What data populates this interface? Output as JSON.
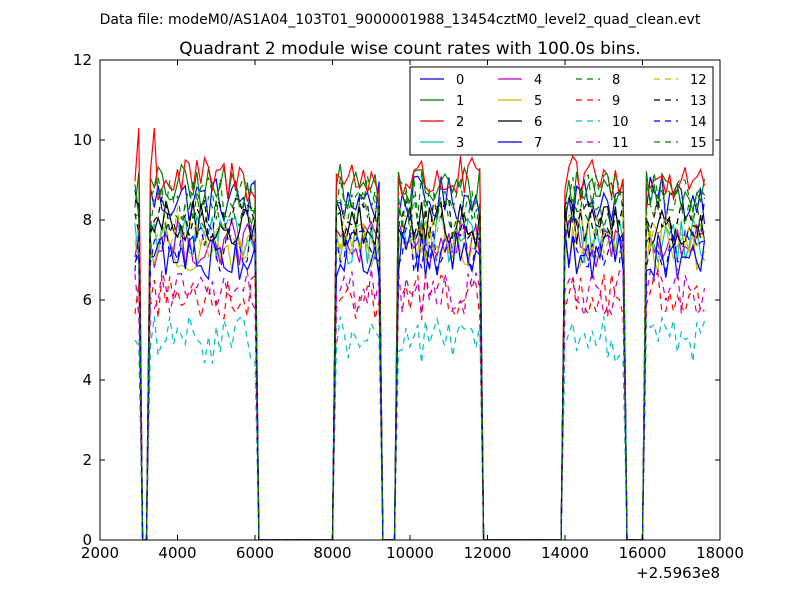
{
  "suptitle": "Data file: modeM0/AS1A04_103T01_9000001988_13454cztM0_level2_quad_clean.evt",
  "chart_data": {
    "type": "line",
    "title": "Quadrant 2 module wise count rates with 100.0s bins.",
    "xlabel": "",
    "ylabel": "",
    "xlim": [
      2000,
      18000
    ],
    "ylim": [
      0,
      12
    ],
    "x_ticks": [
      2000,
      4000,
      6000,
      8000,
      10000,
      12000,
      14000,
      16000,
      18000
    ],
    "y_ticks": [
      0,
      2,
      4,
      6,
      8,
      10,
      12
    ],
    "x_offset_label": "+2.5963e8",
    "legend_position": "top-right",
    "grid": false,
    "x_start": 2900,
    "bin_width": 100,
    "n_bins": 148,
    "segments": [
      {
        "start": 2900,
        "end": 3000
      },
      {
        "start": 3300,
        "end": 6000
      },
      {
        "start": 8100,
        "end": 9200
      },
      {
        "start": 9700,
        "end": 11800
      },
      {
        "start": 14000,
        "end": 15500
      },
      {
        "start": 16100,
        "end": 17600
      }
    ],
    "series": [
      {
        "name": "0",
        "color": "#0000ff",
        "dash": "solid",
        "level": 8.5
      },
      {
        "name": "1",
        "color": "#008000",
        "dash": "solid",
        "level": 8.8
      },
      {
        "name": "2",
        "color": "#ff0000",
        "dash": "solid",
        "level": 9.0
      },
      {
        "name": "3",
        "color": "#00bfbf",
        "dash": "solid",
        "level": 7.5
      },
      {
        "name": "4",
        "color": "#bf00bf",
        "dash": "solid",
        "level": 7.4
      },
      {
        "name": "5",
        "color": "#bfbf00",
        "dash": "solid",
        "level": 7.3
      },
      {
        "name": "6",
        "color": "#000000",
        "dash": "solid",
        "level": 7.9
      },
      {
        "name": "7",
        "color": "#0000ff",
        "dash": "solid",
        "level": 7.1
      },
      {
        "name": "8",
        "color": "#008000",
        "dash": "dashed",
        "level": 8.6
      },
      {
        "name": "9",
        "color": "#ff0000",
        "dash": "dashed",
        "level": 6.1
      },
      {
        "name": "10",
        "color": "#00bfbf",
        "dash": "dashed",
        "level": 5.0
      },
      {
        "name": "11",
        "color": "#bf00bf",
        "dash": "dashed",
        "level": 6.2
      },
      {
        "name": "12",
        "color": "#bfbf00",
        "dash": "dashed",
        "level": 7.7
      },
      {
        "name": "13",
        "color": "#000000",
        "dash": "dashed",
        "level": 8.0
      },
      {
        "name": "14",
        "color": "#0000ff",
        "dash": "dashed",
        "level": 7.3
      },
      {
        "name": "15",
        "color": "#008000",
        "dash": "dashed",
        "level": 8.2
      }
    ]
  }
}
